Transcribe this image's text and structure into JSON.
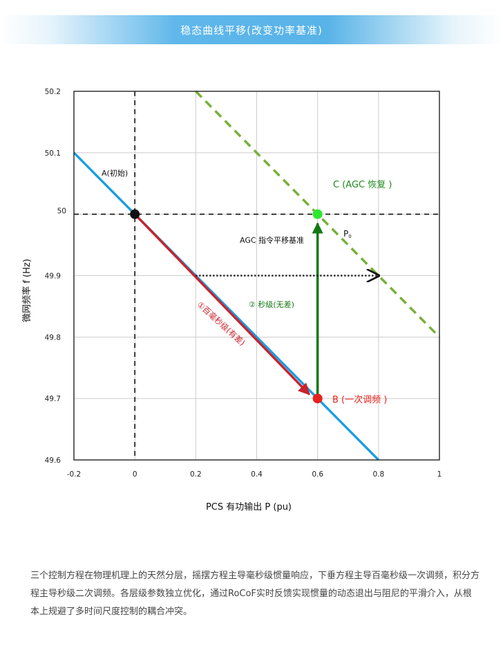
{
  "header": {
    "title": "稳态曲线平移(改变功率基准)"
  },
  "caption": "三个控制方程在物理机理上的天然分层，摇摆方程主导毫秒级惯量响应，下垂方程主导百毫秒级一次调频，积分方程主导秒级二次调频。各层级参数独立优化，通过RoCoF实时反馈实现惯量的动态退出与阻尼的平滑介入，从根本上规避了多时间尺度控制的耦合冲突。",
  "chart_data": {
    "type": "line",
    "title": "",
    "xlabel": "PCS  有功输出 P (pu)",
    "ylabel": "微网频率 f (Hz)",
    "xlim": [
      -0.2,
      1.0
    ],
    "ylim": [
      49.6,
      50.2
    ],
    "x_ticks": [
      "-0.2",
      "0",
      "0.2",
      "0.4",
      "0.6",
      "0.8",
      "1"
    ],
    "y_ticks": [
      "49.6",
      "49.7",
      "49.8",
      "49.9",
      "50",
      "50.1",
      "50.2"
    ],
    "grid": true,
    "series": [
      {
        "name": "",
        "style": "solid",
        "color": "#1a9ce3",
        "x": [
          -0.2,
          0.8
        ],
        "y": [
          50.1,
          49.6
        ]
      },
      {
        "name": "",
        "style": "dashed",
        "color": "#77b038",
        "x": [
          0.2,
          1.0
        ],
        "y": [
          50.2,
          49.8
        ]
      }
    ],
    "points": [
      {
        "label": "A(初始)",
        "x": 0,
        "y": 50.0,
        "color": "#111111"
      },
      {
        "label": "B (一次调频 )",
        "x": 0.6,
        "y": 49.7,
        "color": "#e8221c"
      },
      {
        "label": "C (AGC 恢复 )",
        "x": 0.6,
        "y": 50.0,
        "color": "#2ee82e"
      }
    ],
    "arrows": [
      {
        "label": "①百毫秒级(有差)",
        "from": [
          0,
          50.0
        ],
        "to": [
          0.6,
          49.7
        ],
        "color": "#c8232c"
      },
      {
        "label": "② 秒级(无差)",
        "from": [
          0.6,
          49.7
        ],
        "to": [
          0.6,
          49.985
        ],
        "color": "#137a13"
      },
      {
        "label": "AGC 指令平移基准",
        "from": [
          0.2,
          49.9
        ],
        "to": [
          0.8,
          49.9
        ],
        "color": "#111111"
      }
    ],
    "reference_lines": {
      "x": 0,
      "y": 50.0
    },
    "annotations": [
      {
        "text": "P",
        "sub": "0",
        "x": 0.615,
        "y": 49.975
      }
    ]
  }
}
